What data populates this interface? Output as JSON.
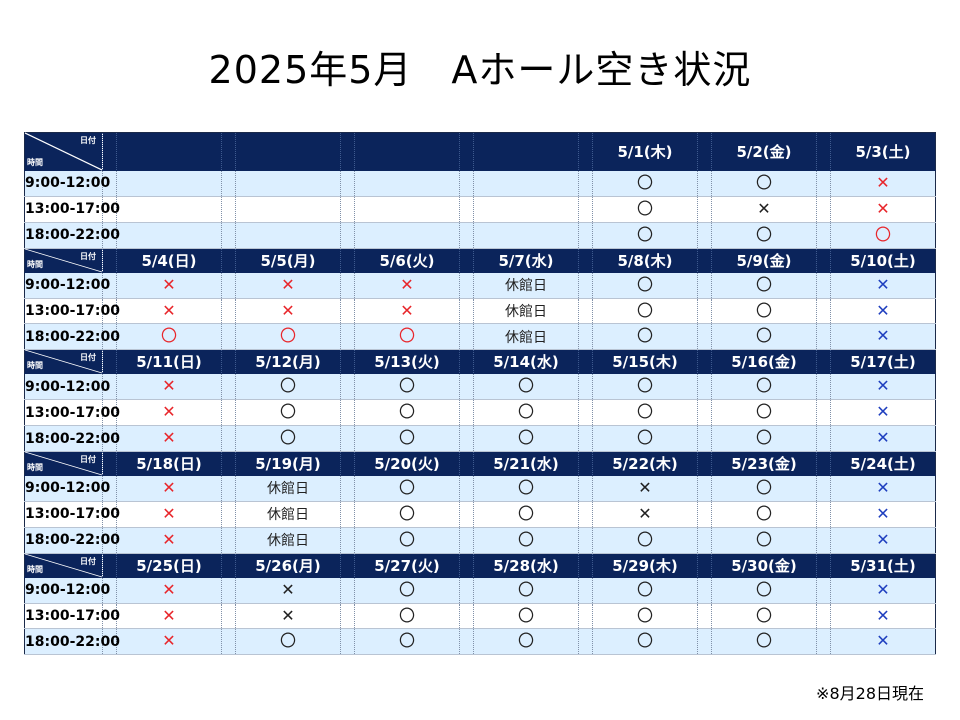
{
  "title": "2025年5月　Aホール空き状況",
  "corner": {
    "date_label": "日付",
    "time_label": "時間"
  },
  "slots": [
    "9:00-12:00",
    "13:00-17:00",
    "18:00-22:00"
  ],
  "colors": {
    "header_bg": "#0b245b",
    "row_light": "#dcefff",
    "red_mark": "#e8262b",
    "blue_mark": "#1f3fbf"
  },
  "weeks": [
    {
      "dates": [
        "",
        "",
        "",
        "",
        "5/1(木)",
        "5/2(金)",
        "5/3(土)"
      ],
      "rows": [
        [
          {
            "t": ""
          },
          {
            "t": ""
          },
          {
            "t": ""
          },
          {
            "t": ""
          },
          {
            "t": "〇",
            "c": "black"
          },
          {
            "t": "〇",
            "c": "black"
          },
          {
            "t": "✕",
            "c": "red"
          }
        ],
        [
          {
            "t": ""
          },
          {
            "t": ""
          },
          {
            "t": ""
          },
          {
            "t": ""
          },
          {
            "t": "〇",
            "c": "black"
          },
          {
            "t": "✕",
            "c": "black"
          },
          {
            "t": "✕",
            "c": "red"
          }
        ],
        [
          {
            "t": ""
          },
          {
            "t": ""
          },
          {
            "t": ""
          },
          {
            "t": ""
          },
          {
            "t": "〇",
            "c": "black"
          },
          {
            "t": "〇",
            "c": "black"
          },
          {
            "t": "〇",
            "c": "red"
          }
        ]
      ]
    },
    {
      "dates": [
        "5/4(日)",
        "5/5(月)",
        "5/6(火)",
        "5/7(水)",
        "5/8(木)",
        "5/9(金)",
        "5/10(土)"
      ],
      "rows": [
        [
          {
            "t": "✕",
            "c": "red"
          },
          {
            "t": "✕",
            "c": "red"
          },
          {
            "t": "✕",
            "c": "red"
          },
          {
            "t": "休館日",
            "c": "closed"
          },
          {
            "t": "〇",
            "c": "black"
          },
          {
            "t": "〇",
            "c": "black"
          },
          {
            "t": "✕",
            "c": "blue"
          }
        ],
        [
          {
            "t": "✕",
            "c": "red"
          },
          {
            "t": "✕",
            "c": "red"
          },
          {
            "t": "✕",
            "c": "red"
          },
          {
            "t": "休館日",
            "c": "closed"
          },
          {
            "t": "〇",
            "c": "black"
          },
          {
            "t": "〇",
            "c": "black"
          },
          {
            "t": "✕",
            "c": "blue"
          }
        ],
        [
          {
            "t": "〇",
            "c": "red"
          },
          {
            "t": "〇",
            "c": "red"
          },
          {
            "t": "〇",
            "c": "red"
          },
          {
            "t": "休館日",
            "c": "closed"
          },
          {
            "t": "〇",
            "c": "black"
          },
          {
            "t": "〇",
            "c": "black"
          },
          {
            "t": "✕",
            "c": "blue"
          }
        ]
      ]
    },
    {
      "dates": [
        "5/11(日)",
        "5/12(月)",
        "5/13(火)",
        "5/14(水)",
        "5/15(木)",
        "5/16(金)",
        "5/17(土)"
      ],
      "rows": [
        [
          {
            "t": "✕",
            "c": "red"
          },
          {
            "t": "〇",
            "c": "black"
          },
          {
            "t": "〇",
            "c": "black"
          },
          {
            "t": "〇",
            "c": "black"
          },
          {
            "t": "〇",
            "c": "black"
          },
          {
            "t": "〇",
            "c": "black"
          },
          {
            "t": "✕",
            "c": "blue"
          }
        ],
        [
          {
            "t": "✕",
            "c": "red"
          },
          {
            "t": "〇",
            "c": "black"
          },
          {
            "t": "〇",
            "c": "black"
          },
          {
            "t": "〇",
            "c": "black"
          },
          {
            "t": "〇",
            "c": "black"
          },
          {
            "t": "〇",
            "c": "black"
          },
          {
            "t": "✕",
            "c": "blue"
          }
        ],
        [
          {
            "t": "✕",
            "c": "red"
          },
          {
            "t": "〇",
            "c": "black"
          },
          {
            "t": "〇",
            "c": "black"
          },
          {
            "t": "〇",
            "c": "black"
          },
          {
            "t": "〇",
            "c": "black"
          },
          {
            "t": "〇",
            "c": "black"
          },
          {
            "t": "✕",
            "c": "blue"
          }
        ]
      ]
    },
    {
      "dates": [
        "5/18(日)",
        "5/19(月)",
        "5/20(火)",
        "5/21(水)",
        "5/22(木)",
        "5/23(金)",
        "5/24(土)"
      ],
      "rows": [
        [
          {
            "t": "✕",
            "c": "red"
          },
          {
            "t": "休館日",
            "c": "closed"
          },
          {
            "t": "〇",
            "c": "black"
          },
          {
            "t": "〇",
            "c": "black"
          },
          {
            "t": "✕",
            "c": "black"
          },
          {
            "t": "〇",
            "c": "black"
          },
          {
            "t": "✕",
            "c": "blue"
          }
        ],
        [
          {
            "t": "✕",
            "c": "red"
          },
          {
            "t": "休館日",
            "c": "closed"
          },
          {
            "t": "〇",
            "c": "black"
          },
          {
            "t": "〇",
            "c": "black"
          },
          {
            "t": "✕",
            "c": "black"
          },
          {
            "t": "〇",
            "c": "black"
          },
          {
            "t": "✕",
            "c": "blue"
          }
        ],
        [
          {
            "t": "✕",
            "c": "red"
          },
          {
            "t": "休館日",
            "c": "closed"
          },
          {
            "t": "〇",
            "c": "black"
          },
          {
            "t": "〇",
            "c": "black"
          },
          {
            "t": "〇",
            "c": "black"
          },
          {
            "t": "〇",
            "c": "black"
          },
          {
            "t": "✕",
            "c": "blue"
          }
        ]
      ]
    },
    {
      "dates": [
        "5/25(日)",
        "5/26(月)",
        "5/27(火)",
        "5/28(水)",
        "5/29(木)",
        "5/30(金)",
        "5/31(土)"
      ],
      "rows": [
        [
          {
            "t": "✕",
            "c": "red"
          },
          {
            "t": "✕",
            "c": "black"
          },
          {
            "t": "〇",
            "c": "black"
          },
          {
            "t": "〇",
            "c": "black"
          },
          {
            "t": "〇",
            "c": "black"
          },
          {
            "t": "〇",
            "c": "black"
          },
          {
            "t": "✕",
            "c": "blue"
          }
        ],
        [
          {
            "t": "✕",
            "c": "red"
          },
          {
            "t": "✕",
            "c": "black"
          },
          {
            "t": "〇",
            "c": "black"
          },
          {
            "t": "〇",
            "c": "black"
          },
          {
            "t": "〇",
            "c": "black"
          },
          {
            "t": "〇",
            "c": "black"
          },
          {
            "t": "✕",
            "c": "blue"
          }
        ],
        [
          {
            "t": "✕",
            "c": "red"
          },
          {
            "t": "〇",
            "c": "black"
          },
          {
            "t": "〇",
            "c": "black"
          },
          {
            "t": "〇",
            "c": "black"
          },
          {
            "t": "〇",
            "c": "black"
          },
          {
            "t": "〇",
            "c": "black"
          },
          {
            "t": "✕",
            "c": "blue"
          }
        ]
      ]
    }
  ],
  "note": "※8月28日現在"
}
